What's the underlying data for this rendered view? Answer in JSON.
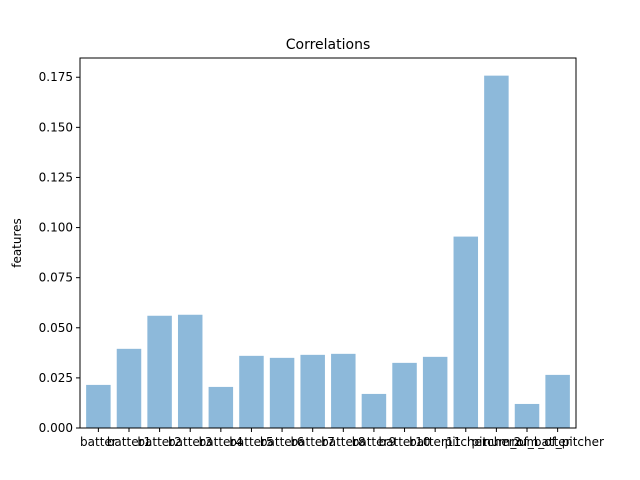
{
  "chart_data": {
    "type": "bar",
    "title": "Correlations",
    "xlabel": "",
    "ylabel": "features",
    "categories": [
      "batter",
      "batter1",
      "batter2",
      "batter3",
      "batter4",
      "batter5",
      "batter6",
      "batter7",
      "batter8",
      "batter9",
      "batter10",
      "batter11",
      "pitcher",
      "pitcher2",
      "num_of_batter",
      "num_of_pitcher"
    ],
    "values": [
      0.0215,
      0.0395,
      0.056,
      0.0565,
      0.0205,
      0.036,
      0.035,
      0.0365,
      0.037,
      0.017,
      0.0325,
      0.0355,
      0.0955,
      0.1758,
      0.012,
      0.0265
    ],
    "ylim": [
      0,
      0.1846
    ],
    "yticks": [
      "0.000",
      "0.025",
      "0.050",
      "0.075",
      "0.100",
      "0.125",
      "0.150",
      "0.175"
    ],
    "bar_color": "#8DB9DA",
    "grid": false,
    "legend": "none"
  }
}
